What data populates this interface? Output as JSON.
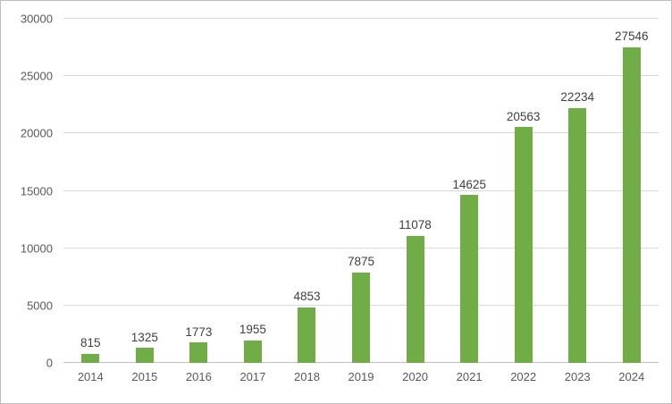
{
  "chart_data": {
    "type": "bar",
    "title": "",
    "xlabel": "",
    "ylabel": "",
    "categories": [
      "2014",
      "2015",
      "2016",
      "2017",
      "2018",
      "2019",
      "2020",
      "2021",
      "2022",
      "2023",
      "2024"
    ],
    "values": [
      815,
      1325,
      1773,
      1955,
      4853,
      7875,
      11078,
      14625,
      20563,
      22234,
      27546
    ],
    "ylim": [
      0,
      30000
    ],
    "yticks": [
      0,
      5000,
      10000,
      15000,
      20000,
      25000,
      30000
    ],
    "grid": true,
    "legend_position": "none",
    "data_labels": true,
    "bar_color": "#70AD47",
    "gridline_color": "#D9D9D9",
    "axis_line_color": "#BFBFBF",
    "tick_text_color": "#595959",
    "data_label_color": "#404040",
    "frame_border_color": "#BFBFBF",
    "background_color": "#FFFFFF"
  }
}
